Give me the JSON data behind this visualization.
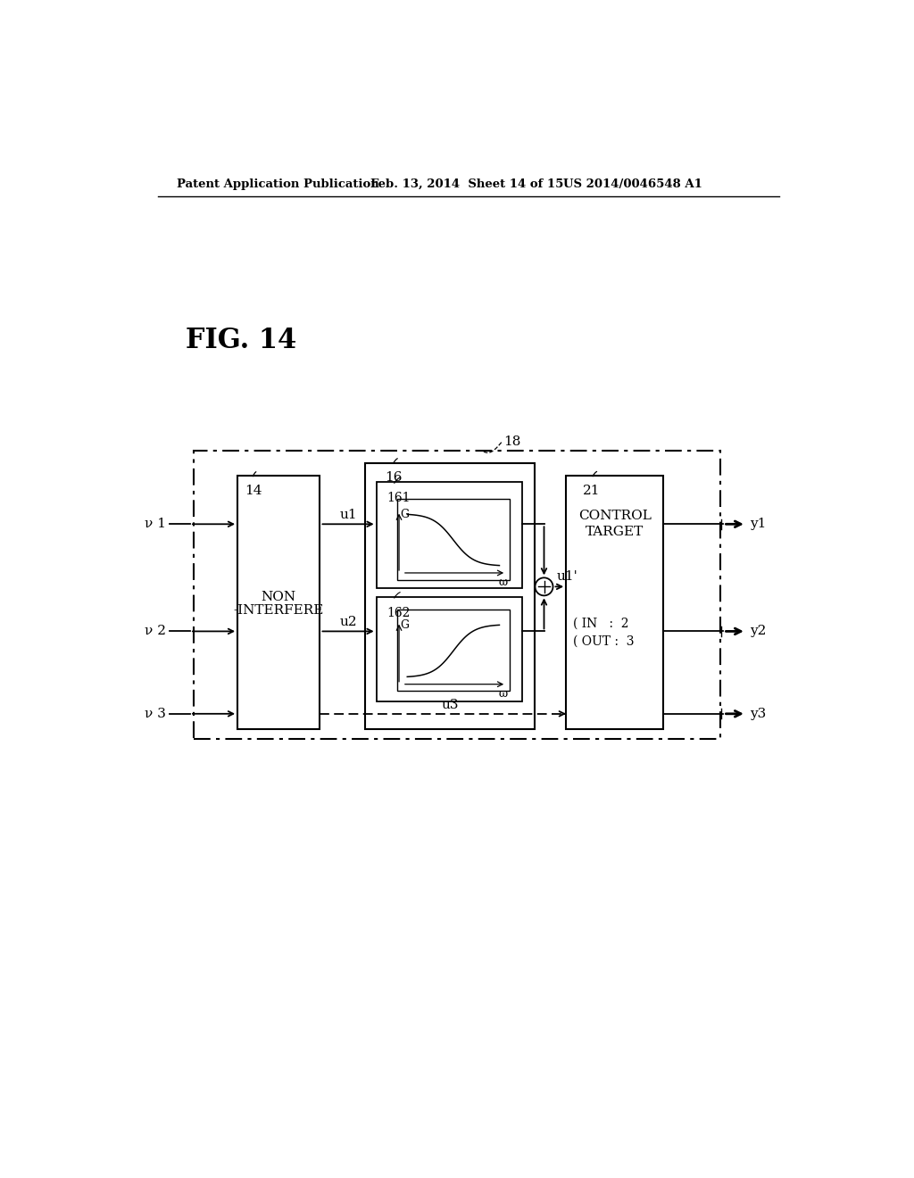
{
  "bg_color": "#ffffff",
  "header_left": "Patent Application Publication",
  "header_mid": "Feb. 13, 2014  Sheet 14 of 15",
  "header_right": "US 2014/0046548 A1",
  "fig_label": "FIG. 14",
  "outer_box_label": "18",
  "block14_label": "14",
  "block14_text_line1": "NON",
  "block14_text_line2": "-INTERFERE",
  "block16_label": "16",
  "block21_label": "21",
  "block21_text_line1": "CONTROL",
  "block21_text_line2": "TARGET",
  "block161_label": "161",
  "block162_label": "162",
  "in_label": "IN",
  "out_label": "OUT",
  "in_val": "2",
  "out_val": "3",
  "inputs": [
    "ν 1",
    "ν 2",
    "ν 3"
  ],
  "outputs": [
    "y1",
    "y2",
    "y3"
  ],
  "u1_label": "u1",
  "u2_label": "u2",
  "u3_label": "u3",
  "u1p_label": "u1'",
  "G_label": "G",
  "omega_label": "ω"
}
